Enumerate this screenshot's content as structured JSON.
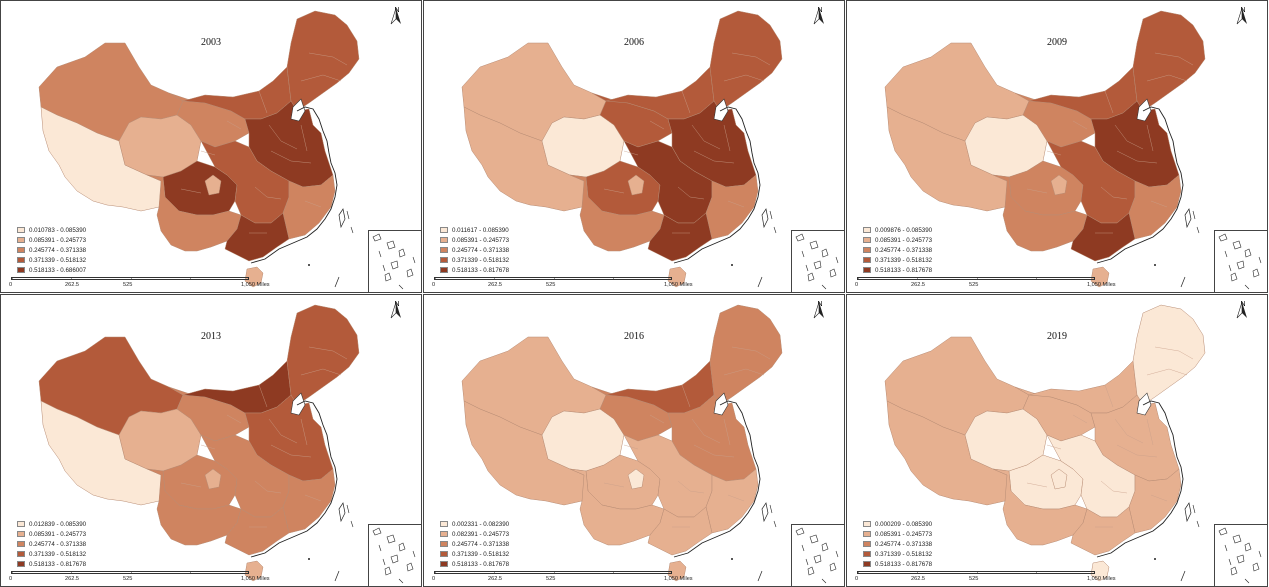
{
  "colors": {
    "class1": "#fbe8d6",
    "class2": "#e6b090",
    "class3": "#cf8460",
    "class4": "#b35a3a",
    "class5": "#8e3a22"
  },
  "panels": [
    {
      "year": "2003",
      "legend": [
        "0.010783 - 0.085390",
        "0.085391 - 0.245773",
        "0.245774 - 0.371338",
        "0.371339 - 0.518132",
        "0.518133 - 0.686007"
      ],
      "classes": {
        "ne": 3,
        "nn": 3,
        "ec": 4,
        "xj": 2,
        "tibet": 0,
        "qh": 1,
        "gs": 2,
        "sc": 4,
        "sw": 2,
        "cc": 3,
        "se": 2,
        "gd": 4,
        "hn": 1,
        "spot": 1
      }
    },
    {
      "year": "2006",
      "legend": [
        "0.011617 - 0.085390",
        "0.085391 - 0.245773",
        "0.245774 - 0.371338",
        "0.371339 - 0.518132",
        "0.518133 - 0.817678"
      ],
      "classes": {
        "ne": 3,
        "nn": 3,
        "ec": 4,
        "xj": 1,
        "tibet": 1,
        "qh": 0,
        "gs": 3,
        "sc": 3,
        "sw": 2,
        "cc": 4,
        "se": 2,
        "gd": 4,
        "hn": 1,
        "spot": 1
      }
    },
    {
      "year": "2009",
      "legend": [
        "0.009876 - 0.085390",
        "0.085391 - 0.245773",
        "0.245774 - 0.371338",
        "0.371339 - 0.518132",
        "0.518133 - 0.817678"
      ],
      "classes": {
        "ne": 3,
        "nn": 3,
        "ec": 4,
        "xj": 1,
        "tibet": 1,
        "qh": 0,
        "gs": 2,
        "sc": 2,
        "sw": 2,
        "cc": 3,
        "se": 2,
        "gd": 4,
        "hn": 1,
        "spot": 1
      }
    },
    {
      "year": "2013",
      "legend": [
        "0.012839 - 0.085390",
        "0.085391 - 0.245773",
        "0.245774 - 0.371338",
        "0.371339 - 0.518132",
        "0.518133 - 0.817678"
      ],
      "classes": {
        "ne": 3,
        "nn": 4,
        "ec": 3,
        "xj": 3,
        "tibet": 0,
        "qh": 1,
        "gs": 2,
        "sc": 2,
        "sw": 2,
        "cc": 2,
        "se": 2,
        "gd": 2,
        "hn": 1,
        "spot": 1
      }
    },
    {
      "year": "2016",
      "legend": [
        "0.002331 - 0.082390",
        "0.082391 - 0.245773",
        "0.245774 - 0.371338",
        "0.371339 - 0.518132",
        "0.518133 - 0.817678"
      ],
      "classes": {
        "ne": 2,
        "nn": 3,
        "ec": 2,
        "xj": 1,
        "tibet": 1,
        "qh": 0,
        "gs": 2,
        "sc": 1,
        "sw": 1,
        "cc": 1,
        "se": 1,
        "gd": 1,
        "hn": 1,
        "spot": 0
      }
    },
    {
      "year": "2019",
      "legend": [
        "0.000209 - 0.085390",
        "0.085391 - 0.245773",
        "0.245774 - 0.371338",
        "0.371339 - 0.518132",
        "0.518133 - 0.817678"
      ],
      "classes": {
        "ne": 0,
        "nn": 1,
        "ec": 1,
        "xj": 1,
        "tibet": 1,
        "qh": 0,
        "gs": 1,
        "sc": 0,
        "sw": 1,
        "cc": 0,
        "se": 1,
        "gd": 1,
        "hn": 0,
        "spot": 0
      }
    }
  ],
  "scale_labels": [
    "0",
    "262.5",
    "525",
    "1,050 Miles"
  ],
  "north_label": "N"
}
